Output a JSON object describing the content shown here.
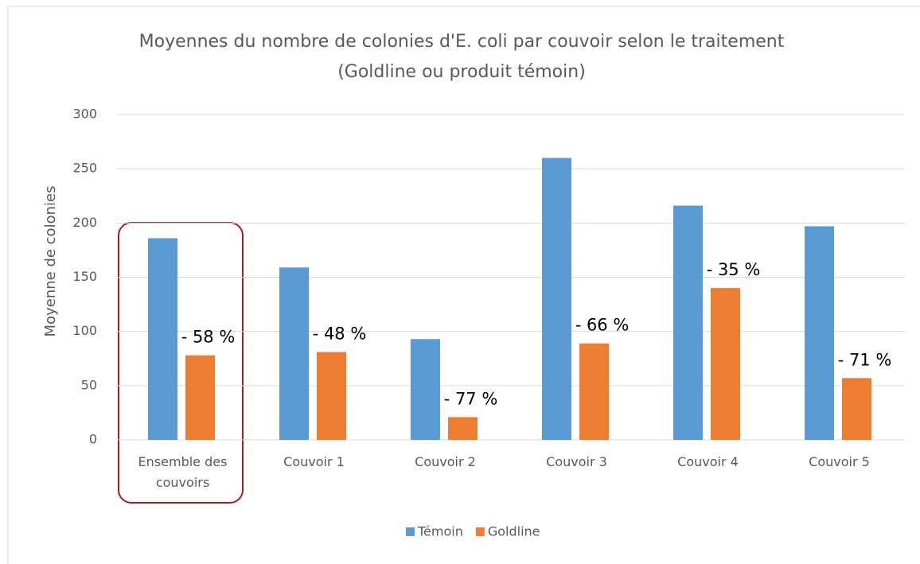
{
  "chart_data": {
    "type": "bar",
    "title": "Moyennes du nombre de colonies d'E. coli par couvoir selon le traitement (Goldline ou produit témoin)",
    "y_label": "Moyenne de colonies",
    "categories": [
      "Ensemble des couvoirs",
      "Couvoir 1",
      "Couvoir 2",
      "Couvoir 3",
      "Couvoir 4",
      "Couvoir 5"
    ],
    "series": [
      {
        "name": "Témoin",
        "color": "#5b9bd5",
        "values": [
          186,
          159,
          93,
          260,
          216,
          197
        ]
      },
      {
        "name": "Goldline",
        "color": "#ed7d31",
        "values": [
          78,
          81,
          21,
          89,
          140,
          57
        ]
      }
    ],
    "annotations": [
      "- 58 %",
      "- 48 %",
      "- 77 %",
      "- 66 %",
      "- 35 %",
      "- 71 %"
    ],
    "ylim": [
      0,
      300
    ],
    "yticks": [
      0,
      50,
      100,
      150,
      200,
      250,
      300
    ],
    "grid": true,
    "legend": "bottom"
  }
}
